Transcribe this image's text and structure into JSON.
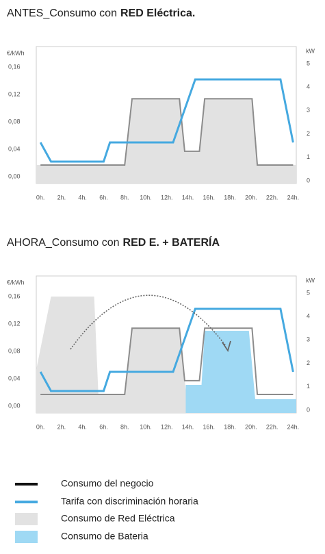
{
  "chart_data": [
    {
      "type": "line",
      "title": "ANTES_Consumo con",
      "title_bold": "RED Eléctrica.",
      "y_label": "€/kWh",
      "y2_label": "kW",
      "xlim": [
        -0.4,
        24.3
      ],
      "xticks": [
        {
          "value": 0,
          "label": "0h."
        },
        {
          "value": 2,
          "label": "2h."
        },
        {
          "value": 4,
          "label": "4h."
        },
        {
          "value": 6,
          "label": "6h."
        },
        {
          "value": 8,
          "label": "8h."
        },
        {
          "value": 10,
          "label": "10h."
        },
        {
          "value": 12,
          "label": "12h."
        },
        {
          "value": 14,
          "label": "14h."
        },
        {
          "value": 16,
          "label": "16h."
        },
        {
          "value": 18,
          "label": "18h."
        },
        {
          "value": 20,
          "label": "20h."
        },
        {
          "value": 22,
          "label": "22h."
        },
        {
          "value": 24,
          "label": "24h."
        }
      ],
      "ylim": [
        -0.01,
        0.19
      ],
      "yticks": [
        {
          "value": 0,
          "label": "0,00"
        },
        {
          "value": 0.04,
          "label": "0,04"
        },
        {
          "value": 0.08,
          "label": "0,08"
        },
        {
          "value": 0.12,
          "label": "0,12"
        },
        {
          "value": 0.16,
          "label": "0,16"
        }
      ],
      "y2lim": [
        -0.12,
        5.73
      ],
      "y2ticks": [
        0,
        1,
        2,
        3,
        4,
        5
      ],
      "series": [
        {
          "name": "Consumo del negocio",
          "type": "line",
          "axis": "y2",
          "color": "#8c8c8c",
          "x": [
            0,
            8,
            8.7,
            13.2,
            13.7,
            15.1,
            15.6,
            20.1,
            20.6,
            24
          ],
          "values": [
            0.67,
            0.67,
            3.5,
            3.5,
            1.26,
            1.26,
            3.5,
            3.5,
            0.67,
            0.67
          ]
        },
        {
          "name": "Tarifa con discriminación horaria",
          "type": "line",
          "color": "#45a9e0",
          "x": [
            0,
            1,
            6,
            6.6,
            12.6,
            14.7,
            22.8,
            24
          ],
          "values": [
            0.05,
            0.022,
            0.022,
            0.05,
            0.05,
            0.142,
            0.142,
            0.05
          ]
        },
        {
          "name": "Consumo de Red Eléctrica",
          "type": "area",
          "axis": "y2",
          "color": "#e2e2e2",
          "x": [
            -0.4,
            8,
            8.7,
            13.2,
            13.7,
            15.1,
            15.6,
            20.1,
            20.6,
            24.3
          ],
          "values": [
            0.67,
            0.67,
            3.5,
            3.5,
            1.26,
            1.26,
            3.5,
            3.5,
            0.67,
            0.67
          ]
        }
      ]
    },
    {
      "type": "line",
      "title": "AHORA_Consumo con",
      "title_bold": "RED E. + BATERÍA",
      "y_label": "€/kWh",
      "y2_label": "kW",
      "xlim": [
        -0.4,
        24.3
      ],
      "xticks": [
        {
          "value": 0,
          "label": "0h."
        },
        {
          "value": 2,
          "label": "2h."
        },
        {
          "value": 4,
          "label": "4h."
        },
        {
          "value": 6,
          "label": "6h."
        },
        {
          "value": 8,
          "label": "8h."
        },
        {
          "value": 10,
          "label": "10h."
        },
        {
          "value": 12,
          "label": "12h."
        },
        {
          "value": 14,
          "label": "14h."
        },
        {
          "value": 16,
          "label": "16h."
        },
        {
          "value": 18,
          "label": "18h."
        },
        {
          "value": 20,
          "label": "20h."
        },
        {
          "value": 22,
          "label": "22h."
        },
        {
          "value": 24,
          "label": "24h."
        }
      ],
      "ylim": [
        -0.01,
        0.19
      ],
      "yticks": [
        {
          "value": 0,
          "label": "0,00"
        },
        {
          "value": 0.04,
          "label": "0,04"
        },
        {
          "value": 0.08,
          "label": "0,08"
        },
        {
          "value": 0.12,
          "label": "0,12"
        },
        {
          "value": 0.16,
          "label": "0,16"
        }
      ],
      "y2lim": [
        -0.12,
        5.73
      ],
      "y2ticks": [
        0,
        1,
        2,
        3,
        4,
        5
      ],
      "series": [
        {
          "name": "Consumo del negocio",
          "type": "line",
          "axis": "y2",
          "color": "#8c8c8c",
          "x": [
            0,
            8,
            8.7,
            13.2,
            13.7,
            15.1,
            15.6,
            20.1,
            20.6,
            24
          ],
          "values": [
            0.67,
            0.67,
            3.5,
            3.5,
            1.26,
            1.26,
            3.5,
            3.5,
            0.67,
            0.67
          ]
        },
        {
          "name": "Tarifa con discriminación horaria",
          "type": "line",
          "color": "#45a9e0",
          "x": [
            0,
            1,
            6,
            6.6,
            12.6,
            14.7,
            22.8,
            24
          ],
          "values": [
            0.05,
            0.022,
            0.022,
            0.05,
            0.05,
            0.142,
            0.142,
            0.05
          ]
        },
        {
          "name": "Consumo de Red Eléctrica",
          "type": "area",
          "axis": "y2",
          "color": "#e2e2e2",
          "x": [
            -0.4,
            1,
            5.1,
            5.5,
            8,
            8.7,
            13.2,
            14
          ],
          "values": [
            1.73,
            4.85,
            4.85,
            0.67,
            0.67,
            3.5,
            3.5,
            0
          ]
        },
        {
          "name": "Consumo de Bateria",
          "type": "area",
          "axis": "y2",
          "color": "#9fd9f4",
          "x": [
            13.8,
            15.3,
            15.6,
            19.8,
            20.4,
            24.3
          ],
          "values": [
            1.08,
            1.08,
            3.39,
            3.39,
            0.47,
            0.47
          ]
        }
      ]
    }
  ]
}
